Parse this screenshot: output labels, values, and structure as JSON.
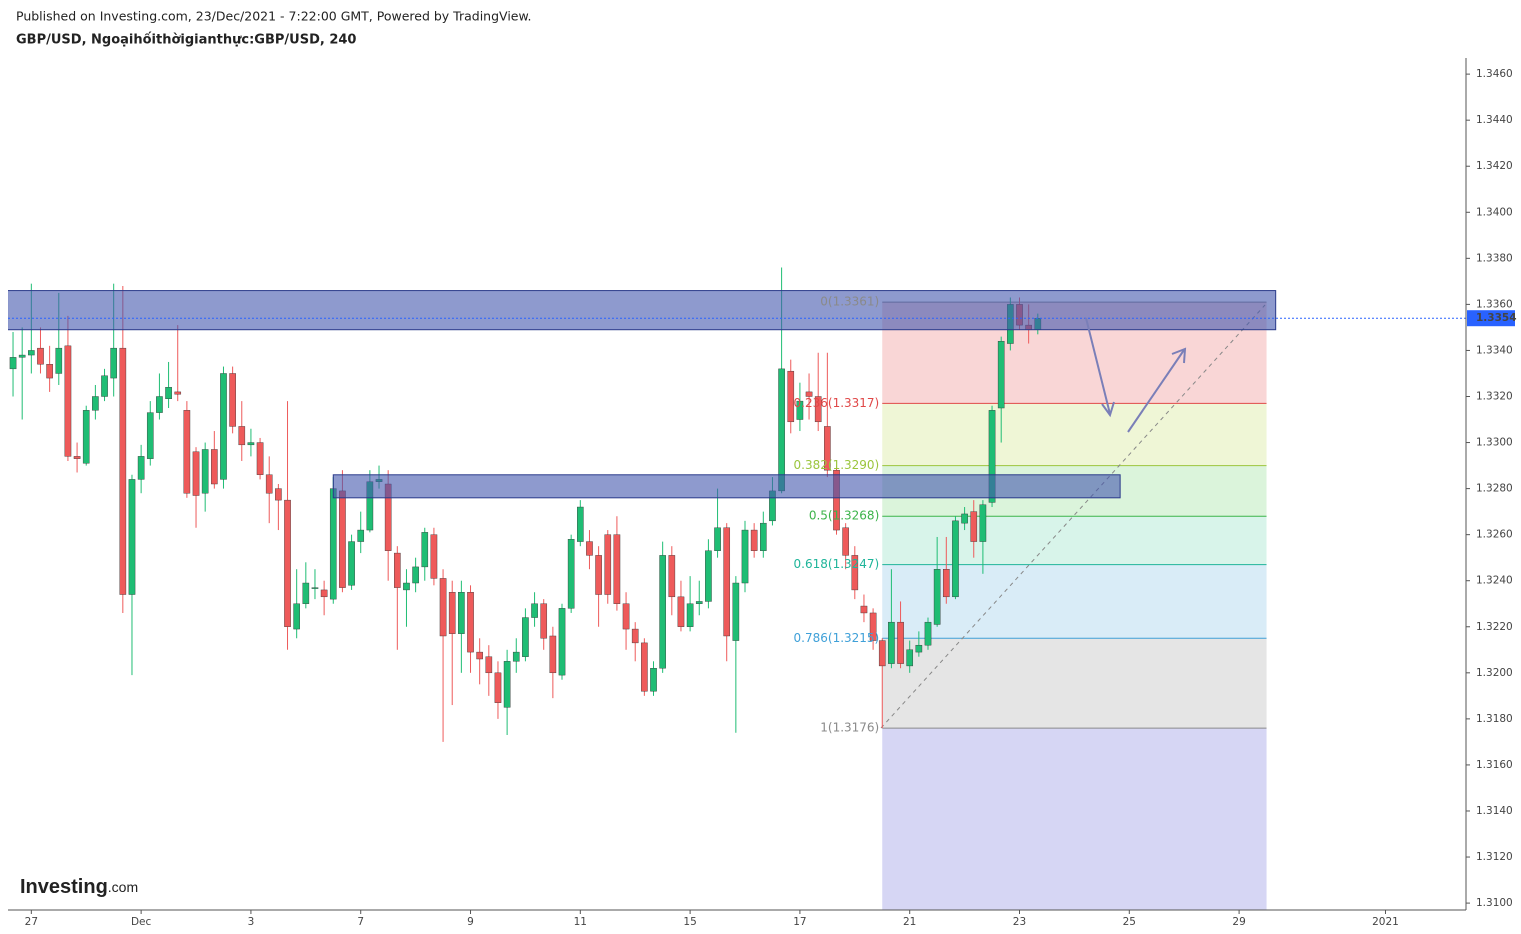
{
  "header": {
    "published": "Published on Investing.com, 23/Dec/2021 - 7:22:00 GMT, Powered by TradingView.",
    "symbol": "GBP/USD, Ngoạihốithờigianthực:GBP/USD, 240"
  },
  "logo": {
    "brand": "Investing",
    "suffix": ".com"
  },
  "chart_data": {
    "type": "candlestick",
    "up_color": "#1fbd74",
    "down_color": "#ee5a5a",
    "xlim": [
      -0.55,
      158.8
    ],
    "ylim": [
      1.3097,
      1.3467
    ],
    "xticks": [
      {
        "value": 2,
        "label": "27"
      },
      {
        "value": 14,
        "label": "Dec"
      },
      {
        "value": 26,
        "label": "3"
      },
      {
        "value": 38,
        "label": "7"
      },
      {
        "value": 50,
        "label": "9"
      },
      {
        "value": 62,
        "label": "11"
      },
      {
        "value": 74,
        "label": "15"
      },
      {
        "value": 86,
        "label": "17"
      },
      {
        "value": 98,
        "label": "21"
      },
      {
        "value": 110,
        "label": "23"
      },
      {
        "value": 122,
        "label": "25"
      },
      {
        "value": 134,
        "label": "29"
      },
      {
        "value": 150,
        "label": "2021"
      }
    ],
    "yticks": [
      {
        "value": 1.346,
        "label": "1.3460"
      },
      {
        "value": 1.344,
        "label": "1.3440"
      },
      {
        "value": 1.342,
        "label": "1.3420"
      },
      {
        "value": 1.34,
        "label": "1.3400"
      },
      {
        "value": 1.338,
        "label": "1.3380"
      },
      {
        "value": 1.336,
        "label": "1.3360"
      },
      {
        "value": 1.334,
        "label": "1.3340"
      },
      {
        "value": 1.332,
        "label": "1.3320"
      },
      {
        "value": 1.33,
        "label": "1.3300"
      },
      {
        "value": 1.328,
        "label": "1.3280"
      },
      {
        "value": 1.326,
        "label": "1.3260"
      },
      {
        "value": 1.324,
        "label": "1.3240"
      },
      {
        "value": 1.322,
        "label": "1.3220"
      },
      {
        "value": 1.32,
        "label": "1.3200"
      },
      {
        "value": 1.318,
        "label": "1.3180"
      },
      {
        "value": 1.316,
        "label": "1.3160"
      },
      {
        "value": 1.314,
        "label": "1.3140"
      },
      {
        "value": 1.312,
        "label": "1.3120"
      },
      {
        "value": 1.31,
        "label": "1.3100"
      }
    ],
    "open": [
      1.3332,
      1.3337,
      1.3338,
      1.3341,
      1.3334,
      1.333,
      1.3342,
      1.3294,
      1.3291,
      1.3314,
      1.332,
      1.3328,
      1.3341,
      1.3234,
      1.3284,
      1.3293,
      1.3313,
      1.3319,
      1.3322,
      1.3314,
      1.3296,
      1.3278,
      1.3297,
      1.3284,
      1.333,
      1.3307,
      1.3299,
      1.33,
      1.3286,
      1.328,
      1.3275,
      1.3219,
      1.323,
      1.3237,
      1.3236,
      1.3232,
      1.3279,
      1.3238,
      1.3257,
      1.3262,
      1.3283,
      1.3282,
      1.3252,
      1.3236,
      1.3239,
      1.3246,
      1.326,
      1.3241,
      1.3235,
      1.3217,
      1.3235,
      1.3209,
      1.3207,
      1.32,
      1.3185,
      1.3205,
      1.3207,
      1.3224,
      1.323,
      1.3216,
      1.3199,
      1.3228,
      1.3257,
      1.3257,
      1.3251,
      1.326,
      1.326,
      1.323,
      1.3219,
      1.3213,
      1.3192,
      1.3202,
      1.3251,
      1.3233,
      1.322,
      1.323,
      1.3231,
      1.3253,
      1.3263,
      1.3214,
      1.3239,
      1.3262,
      1.3253,
      1.3266,
      1.3279,
      1.3331,
      1.331,
      1.3322,
      1.332,
      1.3307,
      1.3288,
      1.3263,
      1.3251,
      1.3229,
      1.3226,
      1.3214,
      1.3204,
      1.3222,
      1.3203,
      1.3209,
      1.3212,
      1.3221,
      1.3245,
      1.3233,
      1.3265,
      1.327,
      1.3257,
      1.3274,
      1.3315,
      1.3343,
      1.336,
      1.3351,
      1.3349
    ],
    "high": [
      1.3348,
      1.335,
      1.3369,
      1.335,
      1.3342,
      1.3365,
      1.3355,
      1.33,
      1.3316,
      1.3325,
      1.3332,
      1.3369,
      1.3368,
      1.3286,
      1.3299,
      1.3318,
      1.333,
      1.3335,
      1.3351,
      1.3318,
      1.3298,
      1.33,
      1.3305,
      1.3333,
      1.3333,
      1.3318,
      1.3306,
      1.3302,
      1.3294,
      1.3282,
      1.3318,
      1.3245,
      1.3248,
      1.3245,
      1.324,
      1.3285,
      1.3288,
      1.326,
      1.327,
      1.3288,
      1.329,
      1.3288,
      1.3255,
      1.3245,
      1.325,
      1.3263,
      1.3263,
      1.3245,
      1.324,
      1.324,
      1.3238,
      1.3215,
      1.3212,
      1.3205,
      1.321,
      1.3215,
      1.3228,
      1.3235,
      1.3232,
      1.322,
      1.323,
      1.326,
      1.3275,
      1.3262,
      1.3255,
      1.3262,
      1.3268,
      1.3235,
      1.3222,
      1.3215,
      1.3205,
      1.3257,
      1.3255,
      1.324,
      1.3242,
      1.324,
      1.3258,
      1.328,
      1.3265,
      1.3242,
      1.3266,
      1.3265,
      1.327,
      1.3285,
      1.3376,
      1.3336,
      1.3326,
      1.333,
      1.3339,
      1.3339,
      1.329,
      1.3265,
      1.3255,
      1.3234,
      1.3228,
      1.3215,
      1.3245,
      1.3231,
      1.3214,
      1.3218,
      1.3224,
      1.3259,
      1.3259,
      1.3268,
      1.3272,
      1.3275,
      1.3275,
      1.3316,
      1.3346,
      1.3363,
      1.3363,
      1.336,
      1.3356
    ],
    "low": [
      1.332,
      1.331,
      1.333,
      1.333,
      1.3322,
      1.3325,
      1.3292,
      1.3287,
      1.329,
      1.331,
      1.3318,
      1.332,
      1.3226,
      1.3199,
      1.3278,
      1.329,
      1.331,
      1.3315,
      1.3318,
      1.3276,
      1.3263,
      1.327,
      1.328,
      1.328,
      1.3304,
      1.3292,
      1.3294,
      1.3284,
      1.3265,
      1.3262,
      1.321,
      1.3215,
      1.3228,
      1.3232,
      1.3225,
      1.323,
      1.3235,
      1.3236,
      1.3252,
      1.3261,
      1.328,
      1.324,
      1.321,
      1.322,
      1.3235,
      1.324,
      1.3238,
      1.317,
      1.3186,
      1.32,
      1.32,
      1.3195,
      1.319,
      1.318,
      1.3173,
      1.32,
      1.3205,
      1.322,
      1.321,
      1.3189,
      1.3197,
      1.3226,
      1.3255,
      1.3245,
      1.322,
      1.323,
      1.3227,
      1.321,
      1.3205,
      1.319,
      1.319,
      1.32,
      1.3225,
      1.3218,
      1.3218,
      1.3225,
      1.3228,
      1.325,
      1.3205,
      1.3174,
      1.3235,
      1.325,
      1.325,
      1.3264,
      1.3278,
      1.3304,
      1.3305,
      1.331,
      1.3305,
      1.3285,
      1.326,
      1.3245,
      1.3232,
      1.3222,
      1.321,
      1.3176,
      1.3202,
      1.3202,
      1.32,
      1.3207,
      1.321,
      1.322,
      1.323,
      1.3232,
      1.3262,
      1.325,
      1.3243,
      1.3272,
      1.33,
      1.334,
      1.3349,
      1.3343,
      1.3347
    ],
    "close": [
      1.3337,
      1.3338,
      1.334,
      1.3334,
      1.3328,
      1.3341,
      1.3294,
      1.3293,
      1.3314,
      1.332,
      1.3329,
      1.3341,
      1.3234,
      1.3284,
      1.3294,
      1.3313,
      1.332,
      1.3324,
      1.3321,
      1.3278,
      1.3277,
      1.3297,
      1.3282,
      1.333,
      1.3307,
      1.3299,
      1.33,
      1.3286,
      1.3278,
      1.3275,
      1.322,
      1.323,
      1.3239,
      1.3237,
      1.3233,
      1.328,
      1.3237,
      1.3257,
      1.3262,
      1.3283,
      1.3284,
      1.3253,
      1.3237,
      1.3239,
      1.3246,
      1.3261,
      1.3241,
      1.3216,
      1.3217,
      1.3235,
      1.3209,
      1.3206,
      1.32,
      1.3187,
      1.3205,
      1.3209,
      1.3224,
      1.323,
      1.3215,
      1.32,
      1.3228,
      1.3258,
      1.3272,
      1.3251,
      1.3234,
      1.3234,
      1.323,
      1.3219,
      1.3213,
      1.3192,
      1.3202,
      1.3251,
      1.3233,
      1.322,
      1.323,
      1.3231,
      1.3253,
      1.3263,
      1.3216,
      1.3239,
      1.3262,
      1.3253,
      1.3265,
      1.3279,
      1.3332,
      1.3309,
      1.3318,
      1.332,
      1.3309,
      1.3288,
      1.3262,
      1.3251,
      1.3236,
      1.3226,
      1.3214,
      1.3203,
      1.3222,
      1.3204,
      1.321,
      1.3212,
      1.3222,
      1.3245,
      1.3233,
      1.3266,
      1.3269,
      1.3257,
      1.3273,
      1.3314,
      1.3344,
      1.336,
      1.3351,
      1.3349,
      1.3354
    ],
    "zones": [
      {
        "x_start": -0.6,
        "x_end": 138,
        "top": 1.3366,
        "bottom": 1.3349,
        "color": "#4256ad"
      },
      {
        "x_start": 35,
        "x_end": 121,
        "top": 1.3286,
        "bottom": 1.3276,
        "color": "#4256ad"
      }
    ],
    "fibonacci": {
      "x_start": 95,
      "x_end": 137,
      "levels": [
        {
          "value": 1.3361,
          "label": "0(1.3361)",
          "color": "#8a8a8a"
        },
        {
          "value": 1.3317,
          "label": "0.236(1.3317)",
          "color": "#e04848"
        },
        {
          "value": 1.329,
          "label": "0.382(1.3290)",
          "color": "#9bc53d"
        },
        {
          "value": 1.3268,
          "label": "0.5(1.3268)",
          "color": "#3cb34a"
        },
        {
          "value": 1.3247,
          "label": "0.618(1.3247)",
          "color": "#1fb59a"
        },
        {
          "value": 1.3215,
          "label": "0.786(1.3215)",
          "color": "#3fa0d8"
        },
        {
          "value": 1.3176,
          "label": "1(1.3176)",
          "color": "#8a8a8a"
        }
      ],
      "band_colors": [
        "rgba(232,90,90,0.25)",
        "rgba(190,220,90,0.25)",
        "rgba(110,210,110,0.25)",
        "rgba(60,200,150,0.2)",
        "rgba(80,170,220,0.22)",
        "rgba(150,150,150,0.25)",
        "rgba(120,120,220,0.3)"
      ]
    },
    "last_price": {
      "value": 1.3354,
      "label": "1.3354",
      "color": "#2962ff"
    }
  }
}
